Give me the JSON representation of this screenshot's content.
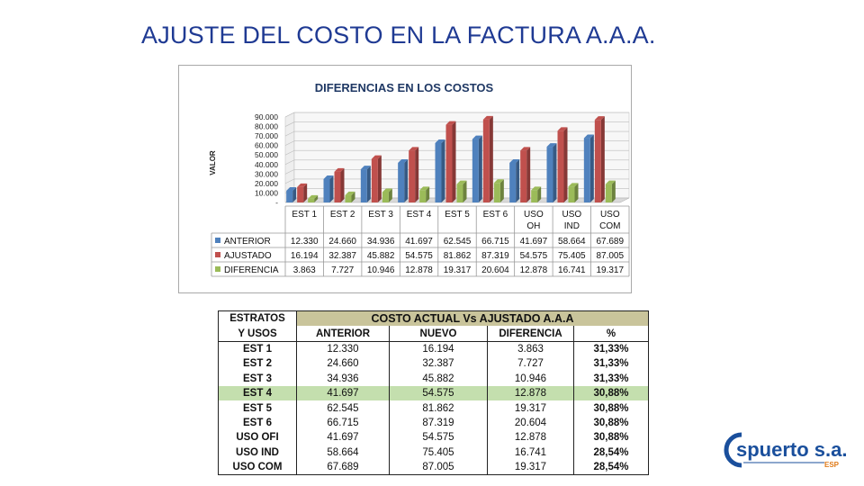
{
  "slide": {
    "title": "AJUSTE DEL COSTO EN LA FACTURA A.A.A."
  },
  "chart_data": {
    "type": "bar",
    "title": "DIFERENCIAS EN LOS COSTOS",
    "ylabel": "VALOR",
    "xlabel": "",
    "ylim": [
      0,
      90000
    ],
    "yticks": [
      "-",
      "10.000",
      "20.000",
      "30.000",
      "40.000",
      "50.000",
      "60.000",
      "70.000",
      "80.000",
      "90.000"
    ],
    "categories": [
      [
        "EST 1"
      ],
      [
        "EST 2"
      ],
      [
        "EST 3"
      ],
      [
        "EST 4"
      ],
      [
        "EST 5"
      ],
      [
        "EST 6"
      ],
      [
        "USO",
        "OH"
      ],
      [
        "USO",
        "IND"
      ],
      [
        "USO",
        "COM"
      ]
    ],
    "series": [
      {
        "name": "ANTERIOR",
        "color": "#4f81bd",
        "values": [
          12330,
          24660,
          34936,
          41697,
          62545,
          66715,
          41697,
          58664,
          67689
        ],
        "labels": [
          "12.330",
          "24.660",
          "34.936",
          "41.697",
          "62.545",
          "66.715",
          "41.697",
          "58.664",
          "67.689"
        ]
      },
      {
        "name": "AJUSTADO",
        "color": "#c0504d",
        "values": [
          16194,
          32387,
          45882,
          54575,
          81862,
          87319,
          54575,
          75405,
          87005
        ],
        "labels": [
          "16.194",
          "32.387",
          "45.882",
          "54.575",
          "81.862",
          "87.319",
          "54.575",
          "75.405",
          "87.005"
        ]
      },
      {
        "name": "DIFERENCIA",
        "color": "#9bbb59",
        "values": [
          3863,
          7727,
          10946,
          12878,
          19317,
          20604,
          12878,
          16741,
          19317
        ],
        "labels": [
          "3.863",
          "7.727",
          "10.946",
          "12.878",
          "19.317",
          "20.604",
          "12.878",
          "16.741",
          "19.317"
        ]
      }
    ],
    "legend": "data-table-below"
  },
  "table": {
    "title": "COSTO ACTUAL Vs AJUSTADO A.A.A",
    "header_left": [
      "ESTRATOS",
      "Y USOS"
    ],
    "columns": [
      "ANTERIOR",
      "NUEVO",
      "DIFERENCIA",
      "%"
    ],
    "rows": [
      {
        "label": "EST 1",
        "anterior": "12.330",
        "nuevo": "16.194",
        "diferencia": "3.863",
        "pct": "31,33%",
        "highlight": false
      },
      {
        "label": "EST 2",
        "anterior": "24.660",
        "nuevo": "32.387",
        "diferencia": "7.727",
        "pct": "31,33%",
        "highlight": false
      },
      {
        "label": "EST 3",
        "anterior": "34.936",
        "nuevo": "45.882",
        "diferencia": "10.946",
        "pct": "31,33%",
        "highlight": false
      },
      {
        "label": "EST 4",
        "anterior": "41.697",
        "nuevo": "54.575",
        "diferencia": "12.878",
        "pct": "30,88%",
        "highlight": true
      },
      {
        "label": "EST 5",
        "anterior": "62.545",
        "nuevo": "81.862",
        "diferencia": "19.317",
        "pct": "30,88%",
        "highlight": false
      },
      {
        "label": "EST 6",
        "anterior": "66.715",
        "nuevo": "87.319",
        "diferencia": "20.604",
        "pct": "30,88%",
        "highlight": false
      },
      {
        "label": "USO OFI",
        "anterior": "41.697",
        "nuevo": "54.575",
        "diferencia": "12.878",
        "pct": "30,88%",
        "highlight": false
      },
      {
        "label": "USO IND",
        "anterior": "58.664",
        "nuevo": "75.405",
        "diferencia": "16.741",
        "pct": "28,54%",
        "highlight": false
      },
      {
        "label": "USO COM",
        "anterior": "67.689",
        "nuevo": "87.005",
        "diferencia": "19.317",
        "pct": "28,54%",
        "highlight": false
      }
    ]
  },
  "logo": {
    "brand": "Espuerto s.a.",
    "tag": "ESP",
    "color": "#1a4f9c",
    "accent": "#e07b1a"
  }
}
